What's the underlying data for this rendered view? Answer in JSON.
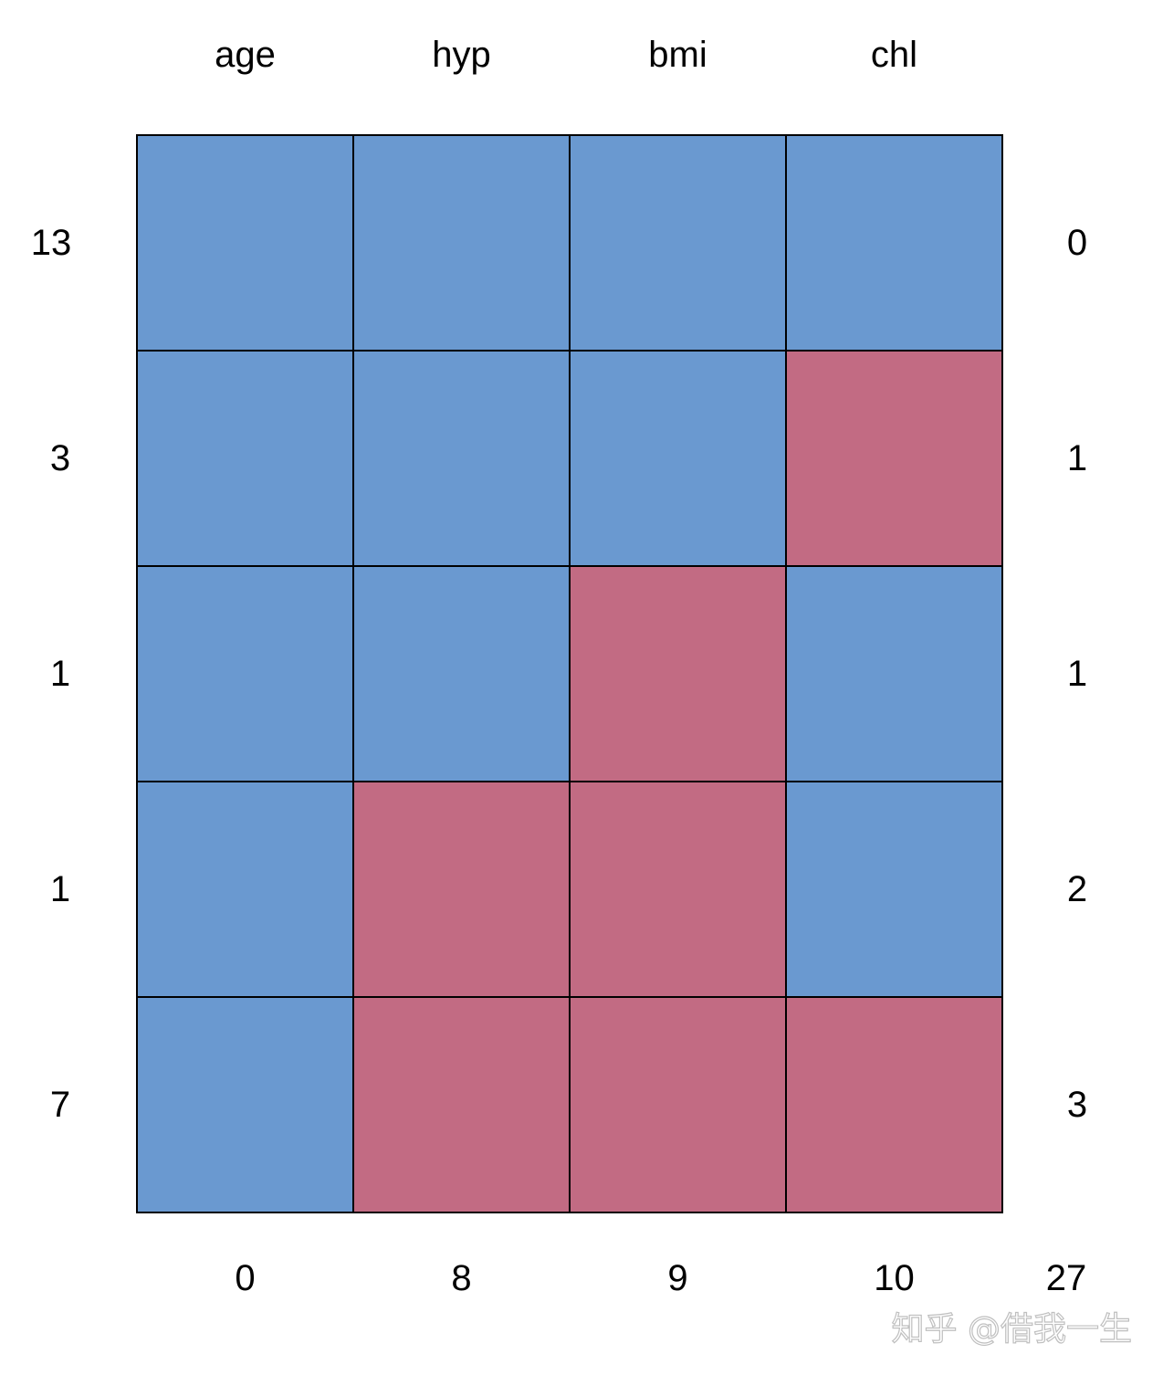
{
  "chart_data": {
    "type": "heatmap",
    "title": "",
    "columns": [
      "age",
      "hyp",
      "bmi",
      "chl"
    ],
    "row_counts": [
      "13",
      "3",
      "1",
      "1",
      "7"
    ],
    "row_missing_counts": [
      "0",
      "1",
      "1",
      "2",
      "3"
    ],
    "column_missing_counts": [
      "0",
      "8",
      "9",
      "10"
    ],
    "total_missing": "27",
    "pattern": [
      [
        1,
        1,
        1,
        1
      ],
      [
        1,
        1,
        1,
        0
      ],
      [
        1,
        1,
        0,
        1
      ],
      [
        1,
        0,
        0,
        1
      ],
      [
        1,
        0,
        0,
        0
      ]
    ],
    "legend": "none",
    "grid": true
  },
  "colors": {
    "observed": "#6A99D0",
    "missing": "#C26B83",
    "border": "#000000"
  },
  "watermark": "知乎 @借我一生"
}
